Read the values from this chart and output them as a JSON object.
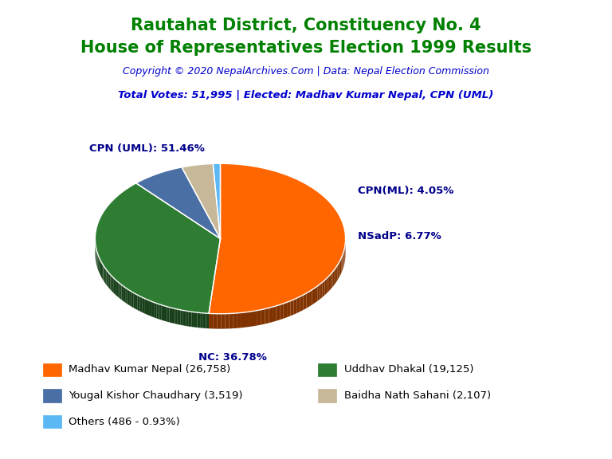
{
  "title_line1": "Rautahat District, Constituency No. 4",
  "title_line2": "House of Representatives Election 1999 Results",
  "title_color": "#008000",
  "copyright_text": "Copyright © 2020 NepalArchives.Com | Data: Nepal Election Commission",
  "copyright_color": "#0000CD",
  "total_votes_text": "Total Votes: 51,995 | Elected: Madhav Kumar Nepal, CPN (UML)",
  "total_votes_color": "#0000CD",
  "slices": [
    {
      "label": "CPN (UML)",
      "value": 26758,
      "pct": 51.46,
      "color": "#FF6600"
    },
    {
      "label": "NC",
      "value": 19125,
      "pct": 36.78,
      "color": "#2E7D32"
    },
    {
      "label": "NSadP",
      "value": 3519,
      "pct": 6.77,
      "color": "#4A6FA5"
    },
    {
      "label": "CPN(ML)",
      "value": 2107,
      "pct": 4.05,
      "color": "#C8B89A"
    },
    {
      "label": "Others",
      "value": 486,
      "pct": 0.93,
      "color": "#5BB8F5"
    }
  ],
  "legend_entries": [
    {
      "label": "Madhav Kumar Nepal (26,758)",
      "color": "#FF6600"
    },
    {
      "label": "Uddhav Dhakal (19,125)",
      "color": "#2E7D32"
    },
    {
      "label": "Yougal Kishor Chaudhary (3,519)",
      "color": "#4A6FA5"
    },
    {
      "label": "Baidha Nath Sahani (2,107)",
      "color": "#C8B89A"
    },
    {
      "label": "Others (486 - 0.93%)",
      "color": "#5BB8F5"
    }
  ],
  "label_color": "#00008B",
  "background_color": "#FFFFFF"
}
